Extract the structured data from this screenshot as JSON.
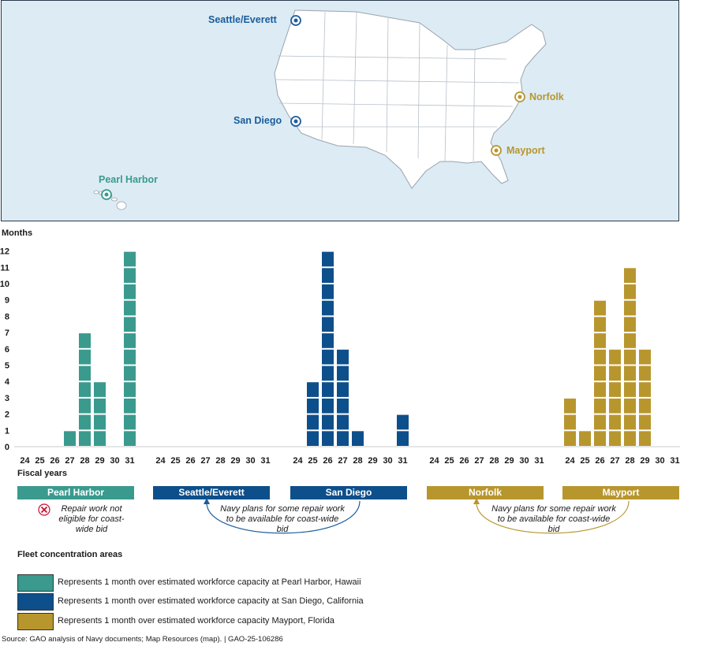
{
  "map": {
    "sites": [
      {
        "key": "seattle",
        "label": "Seattle/Everett",
        "group": "west"
      },
      {
        "key": "sandiego",
        "label": "San Diego",
        "group": "west"
      },
      {
        "key": "pearl",
        "label": "Pearl Harbor",
        "group": "pearl"
      },
      {
        "key": "norfolk",
        "label": "Norfolk",
        "group": "east"
      },
      {
        "key": "mayport",
        "label": "Mayport",
        "group": "east"
      }
    ]
  },
  "chart_data": {
    "type": "bar",
    "ylabel": "Months",
    "xlabel": "Fiscal years",
    "ylim": [
      0,
      12
    ],
    "yticks": [
      0,
      1,
      2,
      3,
      4,
      5,
      6,
      7,
      8,
      9,
      10,
      11,
      12
    ],
    "categories": [
      "24",
      "25",
      "26",
      "27",
      "28",
      "29",
      "30",
      "31"
    ],
    "series": [
      {
        "name": "Pearl Harbor",
        "color": "#3a9a8e",
        "values": [
          0,
          0,
          0,
          1,
          7,
          4,
          0,
          12
        ]
      },
      {
        "name": "Seattle/Everett",
        "color": "#0d4f8b",
        "values": [
          0,
          0,
          0,
          0,
          0,
          0,
          0,
          0
        ]
      },
      {
        "name": "San Diego",
        "color": "#0d4f8b",
        "values": [
          0,
          4,
          12,
          6,
          1,
          0,
          0,
          2
        ]
      },
      {
        "name": "Norfolk",
        "color": "#b8962e",
        "values": [
          0,
          0,
          0,
          0,
          0,
          0,
          0,
          0
        ]
      },
      {
        "name": "Mayport",
        "color": "#b8962e",
        "values": [
          3,
          1,
          9,
          6,
          11,
          6,
          0,
          0
        ]
      }
    ]
  },
  "notes": {
    "pearl": "Repair work not eligible for coast-wide bid",
    "west": "Navy plans for some repair work to be available for coast-wide bid",
    "east": "Navy plans for some repair work to be available for coast-wide bid"
  },
  "legend": {
    "title": "Fleet concentration areas",
    "items": [
      {
        "color": "#3a9a8e",
        "text": "Represents 1 month over estimated workforce capacity at Pearl Harbor, Hawaii"
      },
      {
        "color": "#0d4f8b",
        "text": "Represents 1 month over estimated workforce capacity at San Diego, California"
      },
      {
        "color": "#b8962e",
        "text": "Represents 1 month over estimated workforce capacity Mayport, Florida"
      }
    ]
  },
  "source": "Source: GAO analysis of Navy documents; Map Resources (map).  |  GAO-25-106286"
}
